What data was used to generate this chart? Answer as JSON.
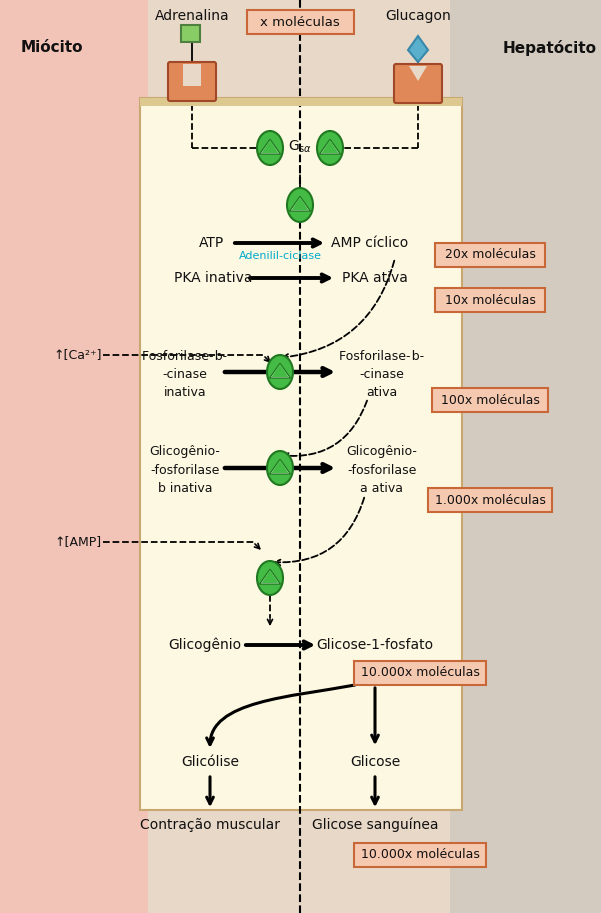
{
  "bg_left": "#f2c4b8",
  "bg_right": "#d4cbc0",
  "bg_center": "#fdf8e2",
  "border_color": "#c8a870",
  "text_color": "#111111",
  "green_fill": "#44bb44",
  "green_edge": "#207820",
  "salmon_receptor": "#e08858",
  "blue_diamond": "#5ab0cc",
  "green_sq": "#88cc66",
  "box_bg": "#f5c8b0",
  "box_border": "#c86838",
  "cyan_text": "#00aacc",
  "title_left": "Miócito",
  "title_right": "Hepatócito",
  "label_adrenalina": "Adrenalina",
  "label_glucagon": "Glucagon",
  "label_x_mol": "x moléculas",
  "label_ATP": "ATP",
  "label_AMPc": "AMP cíclico",
  "label_adenilil": "Adenilil-ciclase",
  "label_PKAi": "PKA inativa",
  "label_PKAa": "PKA ativa",
  "label_Ca": "↑[Ca²⁺]",
  "label_AMP": "↑[AMP]",
  "label_Glicogenio": "Glicogênio",
  "label_Glicose1P": "Glicose-1-fosfato",
  "label_Glicolise": "Glicólise",
  "label_Contracao": "Contração muscular",
  "label_Glicose": "Glicose",
  "label_GlicoseSang": "Glicose sanguínea",
  "box_20x": "20x moléculas",
  "box_10x": "10x moléculas",
  "box_100x": "100x moléculas",
  "box_1000x": "1.000x moléculas",
  "box_10000a": "10.000x moléculas",
  "box_10000b": "10.000x moléculas"
}
